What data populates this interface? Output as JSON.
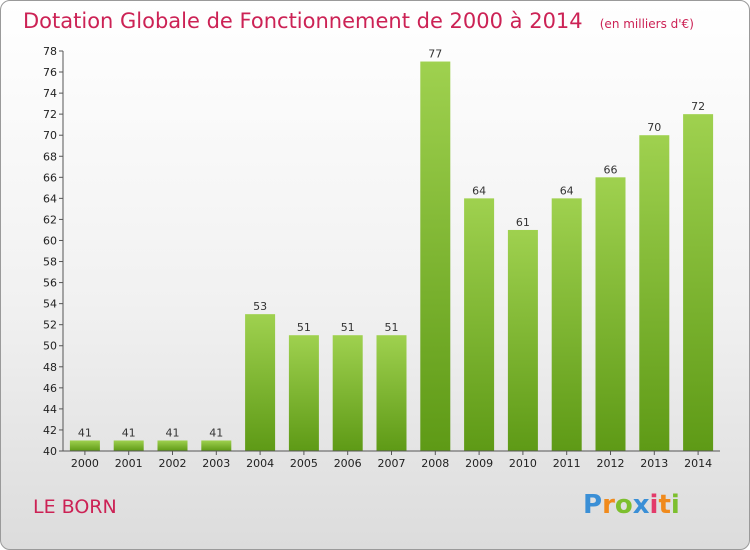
{
  "header": {
    "title": "Dotation Globale de Fonctionnement de 2000 à 2014",
    "unit": "(en milliers d'€)"
  },
  "footer": {
    "town": "LE BORN",
    "logo": {
      "text": "Proxiti",
      "letters": [
        {
          "ch": "P",
          "color": "#3a8fd6"
        },
        {
          "ch": "r",
          "color": "#f08a1c"
        },
        {
          "ch": "o",
          "color": "#7dbf2e"
        },
        {
          "ch": "x",
          "color": "#3a8fd6"
        },
        {
          "ch": "i",
          "color": "#e33b6a"
        },
        {
          "ch": "t",
          "color": "#f08a1c"
        },
        {
          "ch": "i",
          "color": "#7dbf2e"
        }
      ]
    }
  },
  "chart_data": {
    "type": "bar",
    "title": "Dotation Globale de Fonctionnement de 2000 à 2014",
    "subtitle": "(en milliers d'€)",
    "categories": [
      "2000",
      "2001",
      "2002",
      "2003",
      "2004",
      "2005",
      "2006",
      "2007",
      "2008",
      "2009",
      "2010",
      "2011",
      "2012",
      "2013",
      "2014"
    ],
    "values": [
      41,
      41,
      41,
      41,
      53,
      51,
      51,
      51,
      77,
      64,
      61,
      64,
      66,
      70,
      72
    ],
    "ylim": [
      40,
      78
    ],
    "ytick_step": 2,
    "grid": false,
    "bar_color_top": "#9fd14f",
    "bar_color_bottom": "#5e9a16",
    "title_color": "#cc2255"
  }
}
